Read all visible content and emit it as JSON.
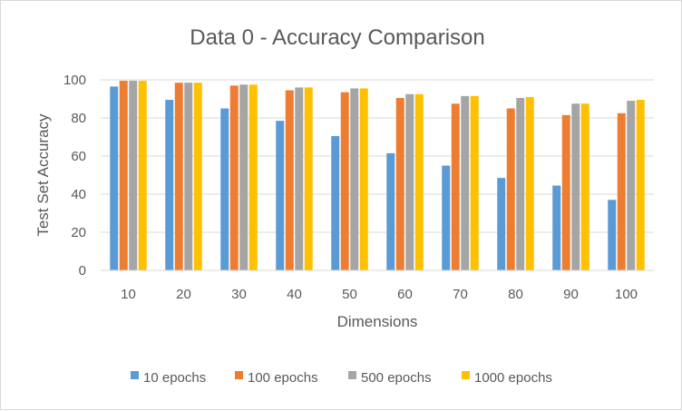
{
  "chart_data": {
    "type": "bar",
    "title": "Data 0 - Accuracy Comparison",
    "xlabel": "Dimensions",
    "ylabel": "Test Set Accuracy",
    "ylim": [
      0,
      100
    ],
    "yticks": [
      0,
      20,
      40,
      60,
      80,
      100
    ],
    "grid": true,
    "legend_position": "bottom",
    "categories": [
      "10",
      "20",
      "30",
      "40",
      "50",
      "60",
      "70",
      "80",
      "90",
      "100"
    ],
    "series": [
      {
        "name": "10 epochs",
        "color": "#5b9bd5",
        "values": [
          96.5,
          89.5,
          85,
          78.5,
          70.5,
          61.5,
          55,
          48.5,
          44.5,
          37
        ]
      },
      {
        "name": "100 epochs",
        "color": "#ed7d31",
        "values": [
          99.5,
          98.5,
          97,
          94.5,
          93.5,
          90.5,
          87.5,
          85,
          81.5,
          82.5
        ]
      },
      {
        "name": "500 epochs",
        "color": "#a5a5a5",
        "values": [
          99.5,
          98.5,
          97.5,
          96,
          95.5,
          92.5,
          91.5,
          90.5,
          87.5,
          89
        ]
      },
      {
        "name": "1000 epochs",
        "color": "#ffc000",
        "values": [
          99.5,
          98.5,
          97.5,
          96,
          95.5,
          92.5,
          91.5,
          91,
          87.5,
          89.5
        ]
      }
    ]
  }
}
